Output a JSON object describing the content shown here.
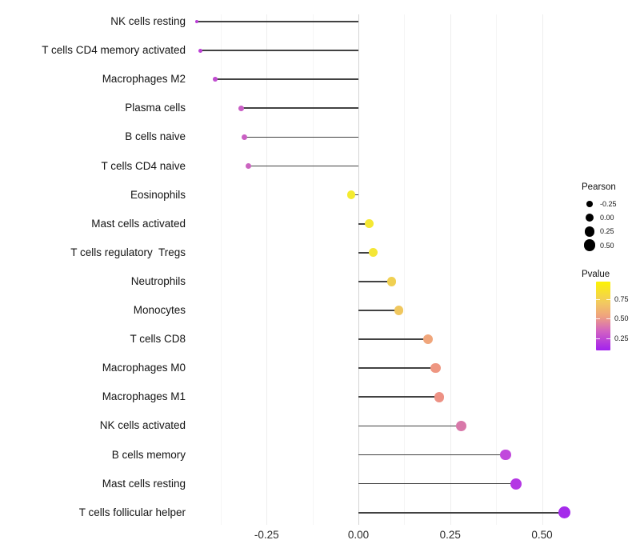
{
  "chart_data": {
    "type": "scatter",
    "variant": "lollipop",
    "orientation": "horizontal",
    "title": "",
    "xlabel": "",
    "ylabel": "",
    "grid": "vertical-only",
    "xlim": [
      -0.46,
      0.59
    ],
    "x_major_ticks": [
      -0.25,
      0.0,
      0.25,
      0.5
    ],
    "x_tick_labels": [
      "-0.25",
      "0.00",
      "0.25",
      "0.50"
    ],
    "x_minor_ticks": [
      -0.375,
      -0.125,
      0.125,
      0.375
    ],
    "rows": [
      {
        "label": "NK cells resting",
        "pearson": -0.44,
        "pvalue": 0.2,
        "color": "#bb3ed6"
      },
      {
        "label": "T cells CD4 memory activated",
        "pearson": -0.43,
        "pvalue": 0.2,
        "color": "#bc40d5"
      },
      {
        "label": "Macrophages M2",
        "pearson": -0.39,
        "pvalue": 0.23,
        "color": "#c04cd0"
      },
      {
        "label": "Plasma cells",
        "pearson": -0.32,
        "pvalue": 0.28,
        "color": "#c95ec5"
      },
      {
        "label": "B cells naive",
        "pearson": -0.31,
        "pvalue": 0.28,
        "color": "#c960c3"
      },
      {
        "label": "T cells CD4 naive",
        "pearson": -0.3,
        "pvalue": 0.29,
        "color": "#cb64c0"
      },
      {
        "label": "Eosinophils",
        "pearson": -0.02,
        "pvalue": 0.85,
        "color": "#f4eb2f"
      },
      {
        "label": "Mast cells activated",
        "pearson": 0.03,
        "pvalue": 0.83,
        "color": "#f5e833"
      },
      {
        "label": "T cells regulatory  Tregs",
        "pearson": 0.04,
        "pvalue": 0.82,
        "color": "#f4e636"
      },
      {
        "label": "Neutrophils",
        "pearson": 0.09,
        "pvalue": 0.72,
        "color": "#f0d052"
      },
      {
        "label": "Monocytes",
        "pearson": 0.11,
        "pvalue": 0.68,
        "color": "#f0c75e"
      },
      {
        "label": "T cells CD8",
        "pearson": 0.19,
        "pvalue": 0.56,
        "color": "#f0a67b"
      },
      {
        "label": "Macrophages M0",
        "pearson": 0.21,
        "pvalue": 0.52,
        "color": "#ee9681"
      },
      {
        "label": "Macrophages M1",
        "pearson": 0.22,
        "pvalue": 0.51,
        "color": "#ed9184"
      },
      {
        "label": "NK cells activated",
        "pearson": 0.28,
        "pvalue": 0.4,
        "color": "#d878a9"
      },
      {
        "label": "B cells memory",
        "pearson": 0.4,
        "pvalue": 0.2,
        "color": "#c148dc"
      },
      {
        "label": "Mast cells resting",
        "pearson": 0.43,
        "pvalue": 0.16,
        "color": "#b437e4"
      },
      {
        "label": "T cells follicular helper",
        "pearson": 0.56,
        "pvalue": 0.11,
        "color": "#a52beb"
      }
    ],
    "segment_color": "#424242",
    "zero_line_color": "#d4d4d4",
    "major_grid_color": "#ededed",
    "minor_grid_color": "#f5f5f5",
    "legends": {
      "size": {
        "title": "Pearson",
        "item_labels": [
          "-0.25",
          "0.00",
          "0.25",
          "0.50"
        ],
        "item_values": [
          -0.25,
          0.0,
          0.25,
          0.5
        ]
      },
      "color": {
        "title": "Pvalue",
        "tick_labels": [
          "0.75",
          "0.50",
          "0.25"
        ],
        "tick_values": [
          0.75,
          0.5,
          0.25
        ],
        "domain": [
          0.1,
          0.97
        ],
        "gradient_stops": [
          "#fcf303",
          "#f2cb5f",
          "#efa37e",
          "#d262c2",
          "#a221ee"
        ],
        "gradient_positions": [
          0,
          30,
          50,
          72,
          100
        ]
      }
    }
  }
}
